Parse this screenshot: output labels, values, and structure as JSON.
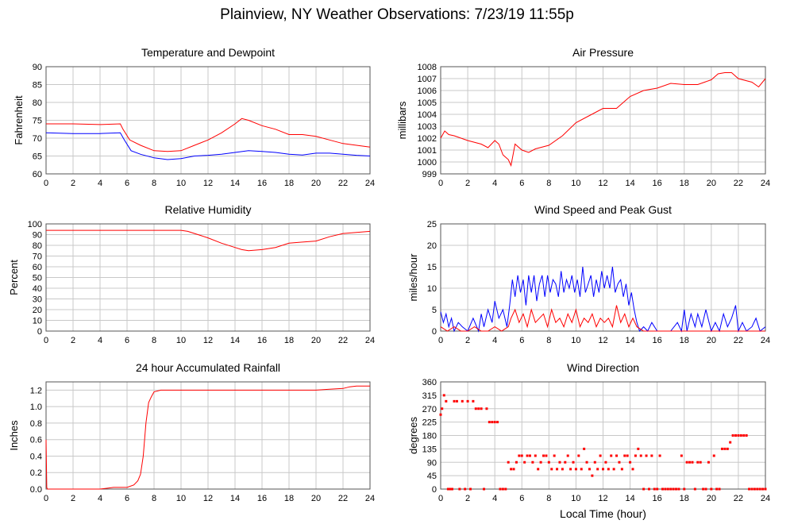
{
  "title": "Plainview, NY Weather Observations: 7/23/19 11:55p",
  "xaxis_label": "Local Time (hour)",
  "chart_data": [
    {
      "id": "temp",
      "type": "line",
      "title": "Temperature and Dewpoint",
      "ylabel": "Fahrenheit",
      "xlabel": "",
      "xlim": [
        0,
        24
      ],
      "ylim": [
        60,
        90
      ],
      "xticks": [
        0,
        2,
        4,
        6,
        8,
        10,
        12,
        14,
        16,
        18,
        20,
        22,
        24
      ],
      "yticks": [
        60,
        65,
        70,
        75,
        80,
        85,
        90
      ],
      "grid": true,
      "series": [
        {
          "color": "#ff0000",
          "x": [
            0,
            2,
            4,
            5.5,
            5.7,
            6.2,
            7,
            8,
            9,
            10,
            11,
            12,
            13,
            14,
            14.5,
            15,
            16,
            17,
            18,
            19,
            20,
            21,
            22,
            23,
            24
          ],
          "y": [
            74,
            74,
            73.8,
            74,
            72.5,
            69.5,
            68,
            66.5,
            66.3,
            66.5,
            68,
            69.5,
            71.5,
            74,
            75.5,
            75,
            73.5,
            72.5,
            71,
            71,
            70.5,
            69.5,
            68.5,
            68,
            67.5
          ]
        },
        {
          "color": "#0000ff",
          "x": [
            0,
            2,
            4,
            5.5,
            5.8,
            6.3,
            7,
            8,
            9,
            10,
            11,
            12,
            13,
            14,
            15,
            16,
            17,
            18,
            19,
            20,
            21,
            22,
            23,
            24
          ],
          "y": [
            71.5,
            71.3,
            71.3,
            71.5,
            69.5,
            66.5,
            65.5,
            64.5,
            64,
            64.3,
            65,
            65.2,
            65.5,
            66,
            66.5,
            66.3,
            66,
            65.5,
            65.3,
            65.8,
            65.8,
            65.5,
            65.2,
            65
          ]
        }
      ]
    },
    {
      "id": "pressure",
      "type": "line",
      "title": "Air Pressure",
      "ylabel": "millibars",
      "xlabel": "",
      "xlim": [
        0,
        24
      ],
      "ylim": [
        999,
        1008
      ],
      "xticks": [
        0,
        2,
        4,
        6,
        8,
        10,
        12,
        14,
        16,
        18,
        20,
        22,
        24
      ],
      "yticks": [
        999,
        1000,
        1001,
        1002,
        1003,
        1004,
        1005,
        1006,
        1007,
        1008
      ],
      "grid": true,
      "series": [
        {
          "color": "#ff0000",
          "x": [
            0,
            0.3,
            0.6,
            1,
            2,
            3,
            3.5,
            4,
            4.3,
            4.6,
            5,
            5.2,
            5.5,
            6,
            6.5,
            7,
            8,
            9,
            10,
            11,
            12,
            13,
            14,
            15,
            16,
            17,
            18,
            19,
            20,
            20.5,
            21,
            21.5,
            22,
            23,
            23.5,
            24
          ],
          "y": [
            1002,
            1002.6,
            1002.3,
            1002.2,
            1001.8,
            1001.5,
            1001.2,
            1001.8,
            1001.5,
            1000.6,
            1000.2,
            999.7,
            1001.5,
            1001.0,
            1000.8,
            1001.1,
            1001.4,
            1002.2,
            1003.3,
            1003.9,
            1004.5,
            1004.5,
            1005.5,
            1006.0,
            1006.2,
            1006.6,
            1006.5,
            1006.5,
            1006.9,
            1007.4,
            1007.5,
            1007.5,
            1007.0,
            1006.7,
            1006.3,
            1007.0
          ]
        }
      ]
    },
    {
      "id": "humidity",
      "type": "line",
      "title": "Relative Humidity",
      "ylabel": "Percent",
      "xlabel": "",
      "xlim": [
        0,
        24
      ],
      "ylim": [
        0,
        100
      ],
      "xticks": [
        0,
        2,
        4,
        6,
        8,
        10,
        12,
        14,
        16,
        18,
        20,
        22,
        24
      ],
      "yticks": [
        0,
        10,
        20,
        30,
        40,
        50,
        60,
        70,
        80,
        90,
        100
      ],
      "grid": true,
      "series": [
        {
          "color": "#ff0000",
          "x": [
            0,
            2,
            4,
            6,
            8,
            10,
            10.5,
            11,
            12,
            13,
            14,
            14.5,
            15,
            16,
            17,
            18,
            19,
            20,
            21,
            22,
            23,
            24
          ],
          "y": [
            94,
            94,
            94,
            94,
            94,
            94,
            93,
            91,
            87,
            82,
            78,
            76,
            75,
            76,
            78,
            82,
            83,
            84,
            88,
            91,
            92,
            93
          ]
        }
      ]
    },
    {
      "id": "wind",
      "type": "line",
      "title": "Wind Speed and Peak Gust",
      "ylabel": "miles/hour",
      "xlabel": "",
      "xlim": [
        0,
        24
      ],
      "ylim": [
        0,
        25
      ],
      "xticks": [
        0,
        2,
        4,
        6,
        8,
        10,
        12,
        14,
        16,
        18,
        20,
        22,
        24
      ],
      "yticks": [
        0,
        5,
        10,
        15,
        20,
        25
      ],
      "grid": true,
      "series": [
        {
          "color": "#0000ff",
          "x": [
            0,
            0.2,
            0.4,
            0.6,
            0.8,
            1.0,
            1.3,
            1.6,
            2.0,
            2.4,
            2.8,
            3.0,
            3.2,
            3.5,
            3.8,
            4.0,
            4.3,
            4.6,
            4.9,
            5.1,
            5.3,
            5.5,
            5.7,
            5.9,
            6.1,
            6.3,
            6.5,
            6.7,
            6.9,
            7.1,
            7.3,
            7.5,
            7.7,
            7.9,
            8.1,
            8.3,
            8.5,
            8.7,
            8.9,
            9.1,
            9.3,
            9.5,
            9.7,
            9.9,
            10.1,
            10.3,
            10.5,
            10.7,
            10.9,
            11.1,
            11.3,
            11.5,
            11.7,
            11.9,
            12.1,
            12.3,
            12.5,
            12.7,
            12.9,
            13.1,
            13.3,
            13.5,
            13.7,
            13.9,
            14.1,
            14.3,
            14.5,
            14.7,
            15.0,
            15.3,
            15.6,
            16.0,
            16.5,
            17.0,
            17.5,
            17.8,
            18.0,
            18.2,
            18.5,
            18.8,
            19.0,
            19.3,
            19.6,
            20.0,
            20.3,
            20.6,
            20.9,
            21.2,
            21.5,
            21.8,
            22.0,
            22.3,
            22.6,
            23.0,
            23.3,
            23.6,
            24.0
          ],
          "y": [
            4.5,
            2,
            4,
            1,
            3,
            0,
            2,
            1,
            0,
            3,
            0,
            4,
            1,
            5,
            2,
            7,
            3,
            5,
            1,
            6,
            12,
            8,
            13,
            9,
            12,
            6,
            13,
            9,
            13,
            7,
            11,
            13,
            8,
            13,
            9,
            12,
            11,
            8,
            14,
            9,
            12,
            10,
            13,
            9,
            12,
            8,
            15,
            9,
            11,
            13,
            8,
            12,
            9,
            14,
            10,
            13,
            10,
            15,
            9,
            11,
            12,
            8,
            11,
            6,
            9,
            5,
            2,
            0,
            1,
            0,
            2,
            0,
            0,
            0,
            2,
            0,
            5,
            0,
            4,
            1,
            4,
            1,
            5,
            0,
            2,
            0,
            4,
            1,
            3,
            6,
            0,
            2,
            0,
            1,
            3,
            0,
            1
          ]
        },
        {
          "color": "#ff0000",
          "x": [
            0,
            0.5,
            1,
            1.5,
            2,
            2.5,
            3,
            3.5,
            4,
            4.5,
            5,
            5.2,
            5.5,
            5.8,
            6.1,
            6.4,
            6.7,
            7.0,
            7.3,
            7.6,
            7.9,
            8.2,
            8.5,
            8.8,
            9.1,
            9.4,
            9.7,
            10.0,
            10.3,
            10.6,
            10.9,
            11.2,
            11.5,
            11.8,
            12.1,
            12.4,
            12.7,
            13.0,
            13.3,
            13.6,
            13.9,
            14.2,
            14.5,
            15,
            16,
            17,
            18,
            19,
            20,
            21,
            22,
            23,
            24
          ],
          "y": [
            1,
            0,
            1,
            0,
            0,
            1,
            0,
            0,
            1,
            0,
            1,
            3,
            5,
            2,
            4,
            1,
            5,
            2,
            3,
            4,
            1,
            5,
            2,
            3,
            1,
            4,
            2,
            5,
            1,
            3,
            2,
            4,
            1,
            3,
            2,
            3,
            1,
            6,
            2,
            4,
            1,
            3,
            1,
            0,
            0,
            0,
            0,
            0,
            0,
            0,
            0,
            0,
            0
          ]
        }
      ]
    },
    {
      "id": "rain",
      "type": "line",
      "title": "24 hour Accumulated Rainfall",
      "ylabel": "Inches",
      "xlabel": "",
      "xlim": [
        0,
        24
      ],
      "ylim": [
        0,
        1.3
      ],
      "xticks": [
        0,
        2,
        4,
        6,
        8,
        10,
        12,
        14,
        16,
        18,
        20,
        22,
        24
      ],
      "yticks": [
        0.0,
        0.2,
        0.4,
        0.6,
        0.8,
        1.0,
        1.2
      ],
      "yticklabels": [
        "0.0",
        "0.2",
        "0.4",
        "0.6",
        "0.8",
        "1.0",
        "1.2"
      ],
      "grid": true,
      "series": [
        {
          "color": "#ff0000",
          "x": [
            0,
            0.05,
            0.1,
            2,
            4,
            4.5,
            5,
            6,
            6.5,
            6.8,
            7.0,
            7.2,
            7.4,
            7.6,
            7.8,
            8.0,
            8.5,
            10,
            12,
            14,
            16,
            18,
            20,
            21,
            22,
            22.5,
            23,
            24
          ],
          "y": [
            0.6,
            0.02,
            0.0,
            0.0,
            0.0,
            0.01,
            0.02,
            0.02,
            0.05,
            0.1,
            0.18,
            0.4,
            0.8,
            1.05,
            1.12,
            1.18,
            1.2,
            1.2,
            1.2,
            1.2,
            1.2,
            1.2,
            1.2,
            1.21,
            1.22,
            1.24,
            1.25,
            1.25
          ]
        }
      ]
    },
    {
      "id": "direction",
      "type": "scatter",
      "title": "Wind Direction",
      "ylabel": "degrees",
      "xlabel": "Local Time (hour)",
      "xlim": [
        0,
        24
      ],
      "ylim": [
        0,
        360
      ],
      "xticks": [
        0,
        2,
        4,
        6,
        8,
        10,
        12,
        14,
        16,
        18,
        20,
        22,
        24
      ],
      "yticks": [
        0,
        45,
        90,
        135,
        180,
        225,
        270,
        315,
        360
      ],
      "grid": true,
      "series": [
        {
          "color": "#ff0000",
          "x": [
            0,
            0.1,
            0.25,
            0.4,
            0.55,
            0.7,
            0.85,
            1.0,
            1.2,
            1.4,
            1.6,
            1.8,
            2.0,
            2.2,
            2.4,
            2.6,
            2.8,
            3.0,
            3.2,
            3.4,
            3.6,
            3.8,
            4.0,
            4.2,
            4.4,
            4.6,
            4.8,
            5.0,
            5.2,
            5.4,
            5.6,
            5.8,
            6.0,
            6.2,
            6.4,
            6.6,
            6.8,
            7.0,
            7.2,
            7.4,
            7.6,
            7.8,
            8.0,
            8.2,
            8.4,
            8.6,
            8.8,
            9.0,
            9.2,
            9.4,
            9.6,
            9.8,
            10.0,
            10.2,
            10.4,
            10.6,
            10.8,
            11.0,
            11.2,
            11.4,
            11.6,
            11.8,
            12.0,
            12.2,
            12.4,
            12.6,
            12.8,
            13.0,
            13.2,
            13.4,
            13.6,
            13.8,
            14.0,
            14.2,
            14.4,
            14.6,
            14.8,
            15.0,
            15.2,
            15.4,
            15.6,
            15.8,
            16.0,
            16.2,
            16.4,
            16.6,
            16.8,
            17.0,
            17.2,
            17.4,
            17.6,
            17.8,
            18.0,
            18.2,
            18.4,
            18.6,
            18.8,
            19.0,
            19.2,
            19.4,
            19.6,
            19.8,
            20.0,
            20.2,
            20.4,
            20.6,
            20.8,
            21.0,
            21.2,
            21.4,
            21.6,
            21.8,
            22.0,
            22.2,
            22.4,
            22.6,
            22.8,
            23.0,
            23.2,
            23.4,
            23.6,
            23.8,
            24.0
          ],
          "y": [
            250,
            270,
            315,
            295,
            0,
            0,
            0,
            295,
            295,
            0,
            295,
            0,
            295,
            0,
            295,
            270,
            270,
            270,
            0,
            270,
            225,
            225,
            225,
            225,
            0,
            0,
            0,
            90,
            67,
            67,
            90,
            112,
            112,
            90,
            112,
            112,
            90,
            112,
            67,
            90,
            112,
            112,
            90,
            67,
            112,
            67,
            90,
            67,
            90,
            112,
            67,
            90,
            67,
            112,
            67,
            135,
            90,
            67,
            45,
            90,
            67,
            112,
            67,
            90,
            67,
            112,
            67,
            112,
            90,
            67,
            112,
            112,
            90,
            67,
            112,
            135,
            112,
            0,
            112,
            0,
            112,
            0,
            0,
            112,
            0,
            0,
            0,
            0,
            0,
            0,
            0,
            112,
            0,
            90,
            90,
            90,
            0,
            90,
            90,
            0,
            0,
            90,
            0,
            112,
            0,
            0,
            135,
            135,
            135,
            157,
            180,
            180,
            180,
            180,
            180,
            180,
            0,
            0,
            0,
            0,
            0,
            0,
            0
          ]
        }
      ]
    }
  ]
}
